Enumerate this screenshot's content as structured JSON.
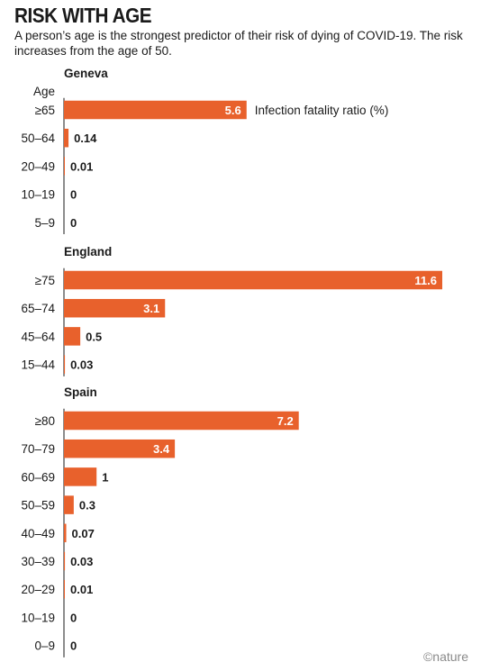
{
  "header": {
    "title": "RISK WITH AGE",
    "subtitle": "A person’s age is the strongest predictor of their risk of dying of COVID-19. The risk increases from the age of 50."
  },
  "credit": "©nature",
  "colors": {
    "bar": "#e8612c",
    "text": "#1a1a1a",
    "axis": "#1a1a1a",
    "label_inside": "#ffffff"
  },
  "chart_data": {
    "type": "bar",
    "orientation": "horizontal",
    "ylabel": "Age",
    "series_label": "Infection fatality ratio (%)",
    "xlim": [
      0,
      11.6
    ],
    "grid": false,
    "groups": [
      {
        "name": "Geneva",
        "categories": [
          "≥65",
          "50–64",
          "20–49",
          "10–19",
          "5–9"
        ],
        "values": [
          5.6,
          0.14,
          0.01,
          0,
          0
        ],
        "labels": [
          "5.6",
          "0.14",
          "0.01",
          "0",
          "0"
        ]
      },
      {
        "name": "England",
        "categories": [
          "≥75",
          "65–74",
          "45–64",
          "15–44"
        ],
        "values": [
          11.6,
          3.1,
          0.5,
          0.03
        ],
        "labels": [
          "11.6",
          "3.1",
          "0.5",
          "0.03"
        ]
      },
      {
        "name": "Spain",
        "categories": [
          "≥80",
          "70–79",
          "60–69",
          "50–59",
          "40–49",
          "30–39",
          "20–29",
          "10–19",
          "0–9"
        ],
        "values": [
          7.2,
          3.4,
          1,
          0.3,
          0.07,
          0.03,
          0.01,
          0,
          0
        ],
        "labels": [
          "7.2",
          "3.4",
          "1",
          "0.3",
          "0.07",
          "0.03",
          "0.01",
          "0",
          "0"
        ]
      }
    ]
  }
}
